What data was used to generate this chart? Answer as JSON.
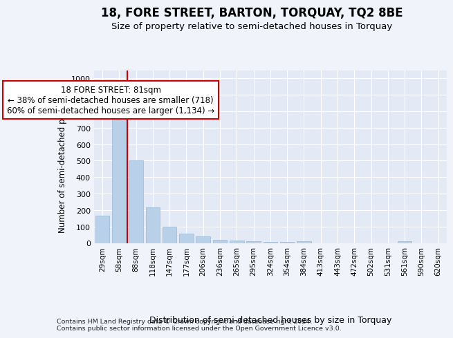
{
  "title": "18, FORE STREET, BARTON, TORQUAY, TQ2 8BE",
  "subtitle": "Size of property relative to semi-detached houses in Torquay",
  "xlabel": "Distribution of semi-detached houses by size in Torquay",
  "ylabel": "Number of semi-detached properties",
  "categories": [
    "29sqm",
    "58sqm",
    "88sqm",
    "118sqm",
    "147sqm",
    "177sqm",
    "206sqm",
    "236sqm",
    "265sqm",
    "295sqm",
    "324sqm",
    "354sqm",
    "384sqm",
    "413sqm",
    "443sqm",
    "472sqm",
    "502sqm",
    "531sqm",
    "561sqm",
    "590sqm",
    "620sqm"
  ],
  "values": [
    165,
    800,
    500,
    215,
    100,
    55,
    40,
    20,
    15,
    10,
    8,
    5,
    10,
    0,
    0,
    0,
    0,
    0,
    10,
    0,
    0
  ],
  "bar_color": "#b8d0e8",
  "bar_edge_color": "#9ab8d8",
  "vline_color": "#cc0000",
  "annotation_text": "18 FORE STREET: 81sqm\n← 38% of semi-detached houses are smaller (718)\n60% of semi-detached houses are larger (1,134) →",
  "annotation_box_facecolor": "#ffffff",
  "annotation_box_edgecolor": "#cc0000",
  "ylim": [
    0,
    1050
  ],
  "yticks": [
    0,
    100,
    200,
    300,
    400,
    500,
    600,
    700,
    800,
    900,
    1000
  ],
  "footer": "Contains HM Land Registry data © Crown copyright and database right 2024.\nContains public sector information licensed under the Open Government Licence v3.0.",
  "bg_color": "#f0f4fa",
  "plot_bg_color": "#e4eaf5",
  "grid_color": "#ffffff",
  "title_fontsize": 12,
  "subtitle_fontsize": 9.5,
  "ylabel_fontsize": 8.5,
  "xlabel_fontsize": 9,
  "tick_fontsize": 8,
  "xtick_fontsize": 7.5,
  "footer_fontsize": 6.8,
  "annot_fontsize": 8.5
}
